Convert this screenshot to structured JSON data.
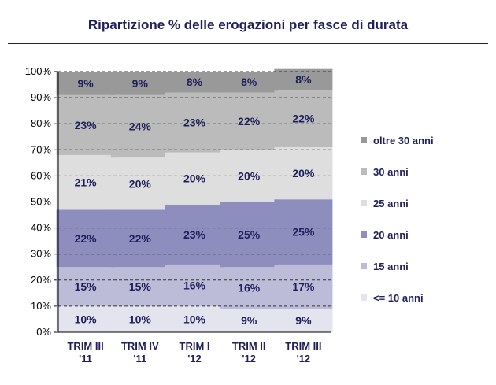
{
  "chart_data": {
    "type": "bar",
    "stacked": true,
    "title": "Ripartizione % delle erogazioni per fasce di durata",
    "xlabel": "",
    "ylabel": "",
    "ylim": [
      0,
      100
    ],
    "yticks": [
      "0%",
      "10%",
      "20%",
      "30%",
      "40%",
      "50%",
      "60%",
      "70%",
      "80%",
      "90%",
      "100%"
    ],
    "grid": true,
    "legend_position": "right",
    "categories": [
      [
        "TRIM III",
        "'11"
      ],
      [
        "TRIM IV",
        "'11"
      ],
      [
        "TRIM I",
        "'12"
      ],
      [
        "TRIM II",
        "'12"
      ],
      [
        "TRIM III",
        "'12"
      ]
    ],
    "series": [
      {
        "name": "<= 10 anni",
        "color": "#e4e4ee",
        "values": [
          10,
          10,
          10,
          9,
          9
        ],
        "labels": [
          "10%",
          "10%",
          "10%",
          "9%",
          "9%"
        ]
      },
      {
        "name": "15 anni",
        "color": "#bcbcd8",
        "values": [
          15,
          15,
          16,
          16,
          17
        ],
        "labels": [
          "15%",
          "15%",
          "16%",
          "16%",
          "17%"
        ]
      },
      {
        "name": "20 anni",
        "color": "#8e8ebe",
        "values": [
          22,
          22,
          23,
          25,
          25
        ],
        "labels": [
          "22%",
          "22%",
          "23%",
          "25%",
          "25%"
        ]
      },
      {
        "name": "25 anni",
        "color": "#dedede",
        "values": [
          21,
          20,
          20,
          20,
          20
        ],
        "labels": [
          "21%",
          "20%",
          "20%",
          "20%",
          "20%"
        ]
      },
      {
        "name": "30 anni",
        "color": "#bbbbbb",
        "values": [
          23,
          24,
          23,
          22,
          22
        ],
        "labels": [
          "23%",
          "24%",
          "23%",
          "22%",
          "22%"
        ]
      },
      {
        "name": "oltre 30 anni",
        "color": "#999999",
        "values": [
          9,
          9,
          8,
          8,
          8
        ],
        "labels": [
          "9%",
          "9%",
          "8%",
          "8%",
          "8%"
        ]
      }
    ]
  }
}
